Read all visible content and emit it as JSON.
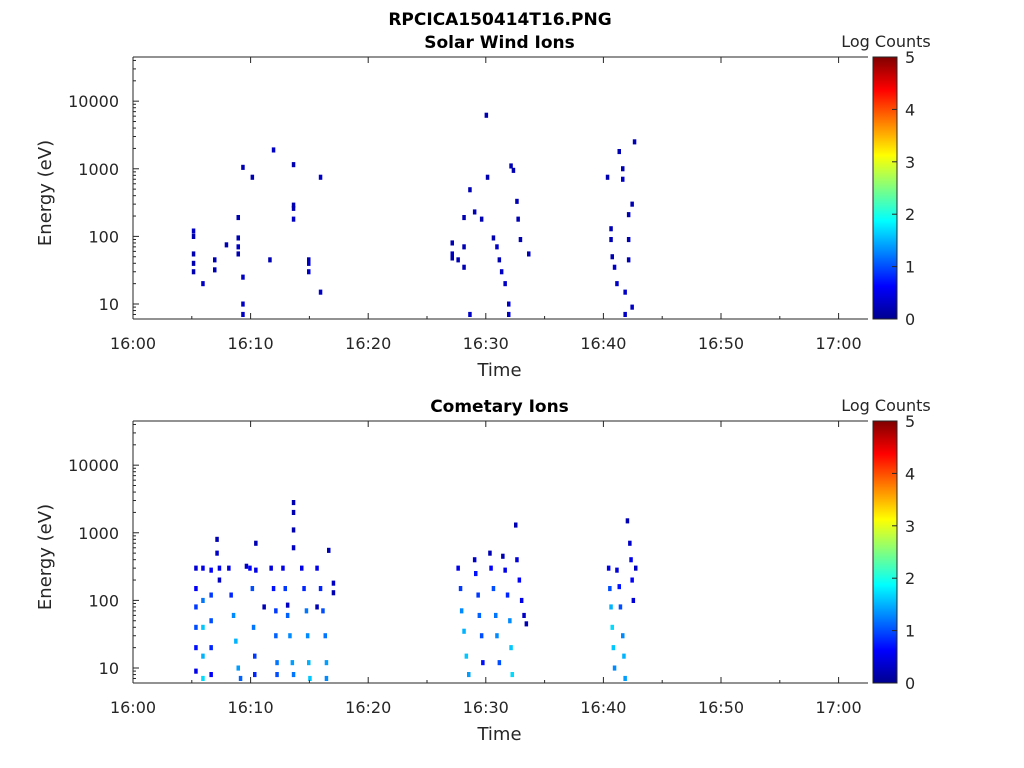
{
  "figure": {
    "title": "RPCICA150414T16.PNG"
  },
  "colormap": {
    "name": "jet",
    "stops": [
      "#00008f",
      "#0000ff",
      "#0080ff",
      "#00ffff",
      "#80ff80",
      "#ffff00",
      "#ff8000",
      "#ff0000",
      "#800000"
    ]
  },
  "chart_data": [
    {
      "type": "heatmap",
      "title": "Solar Wind Ions",
      "xlabel": "Time",
      "ylabel": "Energy (eV)",
      "x_ticks": [
        "16:00",
        "16:10",
        "16:20",
        "16:30",
        "16:40",
        "16:50",
        "17:00"
      ],
      "x_range_minutes": [
        0,
        62.5
      ],
      "y_scale": "log",
      "y_ticks": [
        10,
        100,
        1000,
        10000
      ],
      "y_range": [
        6,
        45000
      ],
      "colorbar": {
        "label": "Log Counts",
        "range": [
          0,
          5
        ],
        "ticks": [
          0,
          1,
          2,
          3,
          4,
          5
        ]
      },
      "cells": [
        [
          5.0,
          30,
          0.2
        ],
        [
          5.0,
          40,
          0.2
        ],
        [
          5.0,
          55,
          0.2
        ],
        [
          5.0,
          120,
          0.3
        ],
        [
          5.0,
          100,
          0.2
        ],
        [
          5.8,
          20,
          0.3
        ],
        [
          6.8,
          45,
          0.2
        ],
        [
          6.8,
          32,
          0.2
        ],
        [
          7.8,
          75,
          0.2
        ],
        [
          8.8,
          190,
          0.2
        ],
        [
          8.8,
          95,
          0.2
        ],
        [
          8.8,
          70,
          0.3
        ],
        [
          8.8,
          55,
          0.2
        ],
        [
          9.2,
          10,
          0.3
        ],
        [
          9.2,
          7,
          0.3
        ],
        [
          9.2,
          25,
          0.3
        ],
        [
          9.2,
          1050,
          0.2
        ],
        [
          10.0,
          750,
          0.2
        ],
        [
          11.5,
          45,
          0.2
        ],
        [
          11.8,
          1900,
          0.3
        ],
        [
          13.5,
          1150,
          0.2
        ],
        [
          13.5,
          290,
          0.2
        ],
        [
          13.5,
          260,
          0.2
        ],
        [
          13.5,
          180,
          0.3
        ],
        [
          14.8,
          45,
          0.2
        ],
        [
          14.8,
          30,
          0.3
        ],
        [
          14.8,
          40,
          0.3
        ],
        [
          15.8,
          750,
          0.3
        ],
        [
          15.8,
          15,
          0.3
        ],
        [
          27.0,
          80,
          0.2
        ],
        [
          27.0,
          55,
          0.3
        ],
        [
          27.0,
          48,
          0.2
        ],
        [
          27.5,
          45,
          0.2
        ],
        [
          28.0,
          190,
          0.2
        ],
        [
          28.0,
          70,
          0.2
        ],
        [
          28.0,
          35,
          0.2
        ],
        [
          28.5,
          7,
          0.3
        ],
        [
          28.5,
          490,
          0.2
        ],
        [
          28.9,
          230,
          0.2
        ],
        [
          29.5,
          180,
          0.2
        ],
        [
          29.9,
          6200,
          0.2
        ],
        [
          30.0,
          750,
          0.2
        ],
        [
          30.5,
          95,
          0.2
        ],
        [
          30.8,
          70,
          0.3
        ],
        [
          31.0,
          45,
          0.2
        ],
        [
          31.2,
          30,
          0.3
        ],
        [
          31.5,
          20,
          0.3
        ],
        [
          31.8,
          10,
          0.3
        ],
        [
          31.8,
          7,
          0.3
        ],
        [
          32.0,
          1100,
          0.2
        ],
        [
          32.2,
          950,
          0.2
        ],
        [
          32.5,
          330,
          0.2
        ],
        [
          32.6,
          180,
          0.2
        ],
        [
          32.8,
          90,
          0.2
        ],
        [
          33.5,
          55,
          0.2
        ],
        [
          40.2,
          750,
          0.2
        ],
        [
          40.5,
          130,
          0.2
        ],
        [
          40.5,
          90,
          0.2
        ],
        [
          40.6,
          50,
          0.2
        ],
        [
          40.8,
          35,
          0.3
        ],
        [
          41.0,
          20,
          0.3
        ],
        [
          41.2,
          1800,
          0.2
        ],
        [
          41.5,
          1000,
          0.2
        ],
        [
          41.5,
          700,
          0.3
        ],
        [
          41.7,
          15,
          0.3
        ],
        [
          41.7,
          7,
          0.3
        ],
        [
          42.0,
          90,
          0.2
        ],
        [
          42.0,
          210,
          0.2
        ],
        [
          42.0,
          45,
          0.2
        ],
        [
          42.3,
          9,
          0.3
        ],
        [
          42.5,
          2500,
          0.2
        ],
        [
          42.3,
          300,
          0.2
        ]
      ]
    },
    {
      "type": "heatmap",
      "title": "Cometary Ions",
      "xlabel": "Time",
      "ylabel": "Energy (eV)",
      "x_ticks": [
        "16:00",
        "16:10",
        "16:20",
        "16:30",
        "16:40",
        "16:50",
        "17:00"
      ],
      "x_range_minutes": [
        0,
        62.5
      ],
      "y_scale": "log",
      "y_ticks": [
        10,
        100,
        1000,
        10000
      ],
      "y_range": [
        6,
        45000
      ],
      "colorbar": {
        "label": "Log Counts",
        "range": [
          0,
          5
        ],
        "ticks": [
          0,
          1,
          2,
          3,
          4,
          5
        ]
      },
      "cells": [
        [
          5.2,
          300,
          0.4
        ],
        [
          5.2,
          150,
          0.6
        ],
        [
          5.2,
          80,
          0.9
        ],
        [
          5.2,
          40,
          1.0
        ],
        [
          5.2,
          20,
          0.7
        ],
        [
          5.2,
          9,
          0.5
        ],
        [
          5.8,
          300,
          0.5
        ],
        [
          5.8,
          100,
          1.2
        ],
        [
          5.8,
          40,
          1.6
        ],
        [
          5.8,
          15,
          1.5
        ],
        [
          5.8,
          7,
          1.7
        ],
        [
          6.5,
          280,
          0.6
        ],
        [
          6.5,
          120,
          0.9
        ],
        [
          6.5,
          50,
          1.0
        ],
        [
          6.5,
          20,
          0.8
        ],
        [
          6.5,
          8,
          0.6
        ],
        [
          7.0,
          800,
          0.2
        ],
        [
          7.0,
          500,
          0.3
        ],
        [
          7.2,
          300,
          0.5
        ],
        [
          7.2,
          200,
          0.3
        ],
        [
          8.0,
          300,
          0.4
        ],
        [
          8.2,
          120,
          0.8
        ],
        [
          8.4,
          60,
          1.3
        ],
        [
          8.6,
          25,
          1.5
        ],
        [
          8.8,
          10,
          1.4
        ],
        [
          9.0,
          7,
          1.1
        ],
        [
          9.5,
          320,
          0.3
        ],
        [
          9.8,
          300,
          0.6
        ],
        [
          10.0,
          150,
          1.0
        ],
        [
          10.1,
          40,
          1.2
        ],
        [
          10.2,
          15,
          0.9
        ],
        [
          10.2,
          8,
          0.8
        ],
        [
          10.3,
          700,
          0.2
        ],
        [
          10.3,
          280,
          0.5
        ],
        [
          11.6,
          300,
          0.4
        ],
        [
          11.8,
          150,
          0.7
        ],
        [
          12.0,
          70,
          0.9
        ],
        [
          12.0,
          30,
          1.1
        ],
        [
          12.1,
          12,
          1.2
        ],
        [
          12.1,
          8,
          1.0
        ],
        [
          12.6,
          300,
          0.5
        ],
        [
          12.8,
          150,
          0.9
        ],
        [
          13.0,
          60,
          1.1
        ],
        [
          13.2,
          30,
          1.3
        ],
        [
          13.4,
          12,
          1.4
        ],
        [
          13.5,
          8,
          1.2
        ],
        [
          13.5,
          2800,
          0.2
        ],
        [
          13.5,
          2000,
          0.2
        ],
        [
          13.5,
          1100,
          0.2
        ],
        [
          13.5,
          600,
          0.3
        ],
        [
          14.2,
          300,
          0.5
        ],
        [
          14.4,
          150,
          0.8
        ],
        [
          14.6,
          70,
          1.2
        ],
        [
          14.7,
          30,
          1.3
        ],
        [
          14.8,
          12,
          1.5
        ],
        [
          14.9,
          7,
          1.6
        ],
        [
          15.5,
          300,
          0.5
        ],
        [
          15.8,
          150,
          0.8
        ],
        [
          16.0,
          70,
          1.0
        ],
        [
          16.2,
          30,
          1.2
        ],
        [
          16.3,
          12,
          1.4
        ],
        [
          16.3,
          7,
          1.3
        ],
        [
          16.5,
          550,
          0.2
        ],
        [
          16.9,
          180,
          0.3
        ],
        [
          16.9,
          130,
          0.2
        ],
        [
          11.0,
          80,
          0.2
        ],
        [
          13.0,
          85,
          0.3
        ],
        [
          15.5,
          80,
          0.2
        ],
        [
          27.5,
          300,
          0.5
        ],
        [
          27.7,
          150,
          0.9
        ],
        [
          27.8,
          70,
          1.3
        ],
        [
          28.0,
          35,
          1.5
        ],
        [
          28.2,
          15,
          1.6
        ],
        [
          28.4,
          8,
          1.4
        ],
        [
          28.9,
          400,
          0.3
        ],
        [
          29.0,
          250,
          0.7
        ],
        [
          29.2,
          120,
          0.9
        ],
        [
          29.3,
          60,
          1.1
        ],
        [
          29.5,
          30,
          1.0
        ],
        [
          29.6,
          12,
          0.7
        ],
        [
          30.2,
          500,
          0.2
        ],
        [
          30.3,
          300,
          0.6
        ],
        [
          30.5,
          150,
          1.0
        ],
        [
          30.7,
          60,
          1.2
        ],
        [
          30.8,
          30,
          1.3
        ],
        [
          31.0,
          12,
          1.0
        ],
        [
          31.3,
          450,
          0.2
        ],
        [
          31.5,
          280,
          0.5
        ],
        [
          31.7,
          120,
          0.8
        ],
        [
          31.9,
          50,
          1.3
        ],
        [
          32.0,
          20,
          1.6
        ],
        [
          32.1,
          8,
          1.7
        ],
        [
          32.4,
          1300,
          0.2
        ],
        [
          32.5,
          400,
          0.4
        ],
        [
          32.7,
          200,
          0.6
        ],
        [
          32.9,
          100,
          0.5
        ],
        [
          33.1,
          60,
          0.3
        ],
        [
          33.3,
          45,
          0.2
        ],
        [
          40.3,
          300,
          0.5
        ],
        [
          40.4,
          150,
          1.0
        ],
        [
          40.5,
          80,
          1.5
        ],
        [
          40.6,
          40,
          1.7
        ],
        [
          40.7,
          20,
          1.6
        ],
        [
          40.8,
          10,
          1.3
        ],
        [
          41.0,
          280,
          0.4
        ],
        [
          41.2,
          160,
          0.7
        ],
        [
          41.3,
          80,
          1.0
        ],
        [
          41.5,
          30,
          1.3
        ],
        [
          41.6,
          15,
          1.5
        ],
        [
          41.7,
          7,
          1.4
        ],
        [
          41.9,
          1500,
          0.2
        ],
        [
          42.1,
          700,
          0.3
        ],
        [
          42.2,
          400,
          0.5
        ],
        [
          42.3,
          200,
          0.6
        ],
        [
          42.4,
          100,
          0.4
        ],
        [
          42.6,
          300,
          0.3
        ]
      ]
    }
  ]
}
